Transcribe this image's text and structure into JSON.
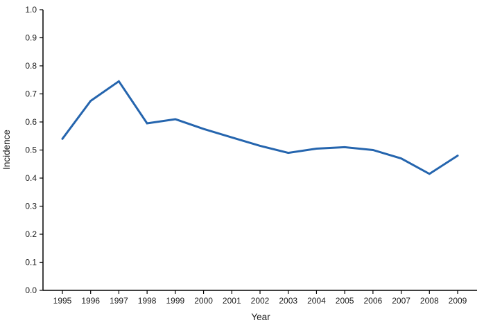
{
  "chart_data": {
    "type": "line",
    "title": "",
    "xlabel": "Year",
    "ylabel": "Incidence",
    "x": [
      1995,
      1996,
      1997,
      1998,
      1999,
      2000,
      2001,
      2002,
      2003,
      2004,
      2005,
      2006,
      2007,
      2008,
      2009
    ],
    "series": [
      {
        "name": "Incidence",
        "color": "#2565ae",
        "values": [
          0.54,
          0.675,
          0.745,
          0.595,
          0.61,
          0.575,
          0.545,
          0.515,
          0.49,
          0.505,
          0.51,
          0.5,
          0.47,
          0.415,
          0.48
        ]
      }
    ],
    "ylim": [
      0.0,
      1.0
    ],
    "ytick_step": 0.1,
    "ytick_decimals": 1,
    "grid": false,
    "legend": "none",
    "axis_color": "#000000"
  }
}
